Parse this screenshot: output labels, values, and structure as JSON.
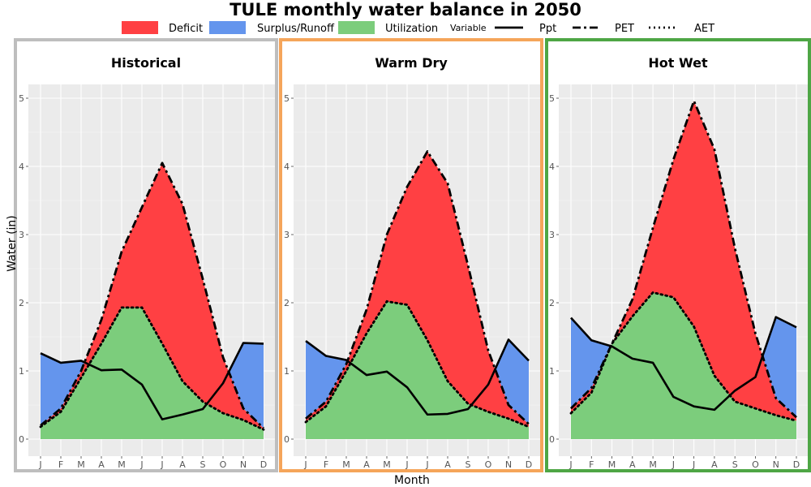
{
  "title": "TULE monthly water balance in 2050",
  "legend": {
    "fill_items": [
      {
        "label": "Deficit",
        "color": "#ff4043"
      },
      {
        "label": "Surplus/Runoff",
        "color": "#6495ed"
      },
      {
        "label": "Utilization",
        "color": "#7ccd7c"
      }
    ],
    "line_title": "Variable",
    "line_items": [
      {
        "label": "Ppt",
        "dash": "solid"
      },
      {
        "label": "PET",
        "dash": "longdash"
      },
      {
        "label": "AET",
        "dash": "dotted"
      }
    ]
  },
  "chart_data": {
    "type": "area",
    "xlabel": "Month",
    "ylabel": "Water (in)",
    "ylim": [
      0,
      5
    ],
    "yticks": [
      0,
      1,
      2,
      3,
      4,
      5
    ],
    "months": [
      "J",
      "F",
      "M",
      "A",
      "M",
      "J",
      "J",
      "A",
      "S",
      "O",
      "N",
      "D"
    ],
    "grid": true,
    "panels": [
      {
        "name": "Historical",
        "border_color": "#bebebe",
        "Ppt": [
          1.26,
          1.12,
          1.15,
          1.01,
          1.02,
          0.8,
          0.29,
          0.36,
          0.44,
          0.82,
          1.41,
          1.4
        ],
        "PET": [
          0.2,
          0.45,
          1.0,
          1.75,
          2.75,
          3.4,
          4.05,
          3.45,
          2.35,
          1.2,
          0.45,
          0.16
        ],
        "AET": [
          0.18,
          0.4,
          0.9,
          1.4,
          1.93,
          1.93,
          1.4,
          0.85,
          0.55,
          0.38,
          0.28,
          0.14
        ]
      },
      {
        "name": "Warm Dry",
        "border_color": "#f5a55a",
        "Ppt": [
          1.44,
          1.22,
          1.16,
          0.94,
          0.99,
          0.76,
          0.36,
          0.37,
          0.44,
          0.8,
          1.46,
          1.15
        ],
        "PET": [
          0.3,
          0.55,
          1.1,
          1.9,
          3.0,
          3.7,
          4.22,
          3.75,
          2.55,
          1.3,
          0.5,
          0.22
        ],
        "AET": [
          0.25,
          0.48,
          1.0,
          1.55,
          2.02,
          1.97,
          1.45,
          0.85,
          0.52,
          0.4,
          0.3,
          0.18
        ]
      },
      {
        "name": "Hot Wet",
        "border_color": "#4ea645",
        "Ppt": [
          1.78,
          1.45,
          1.36,
          1.18,
          1.12,
          0.62,
          0.48,
          0.43,
          0.71,
          0.91,
          1.79,
          1.64
        ],
        "PET": [
          0.45,
          0.75,
          1.4,
          2.05,
          3.1,
          4.1,
          4.96,
          4.25,
          2.8,
          1.55,
          0.6,
          0.32
        ],
        "AET": [
          0.38,
          0.68,
          1.4,
          1.8,
          2.15,
          2.08,
          1.65,
          0.93,
          0.55,
          0.45,
          0.35,
          0.27
        ]
      }
    ]
  }
}
